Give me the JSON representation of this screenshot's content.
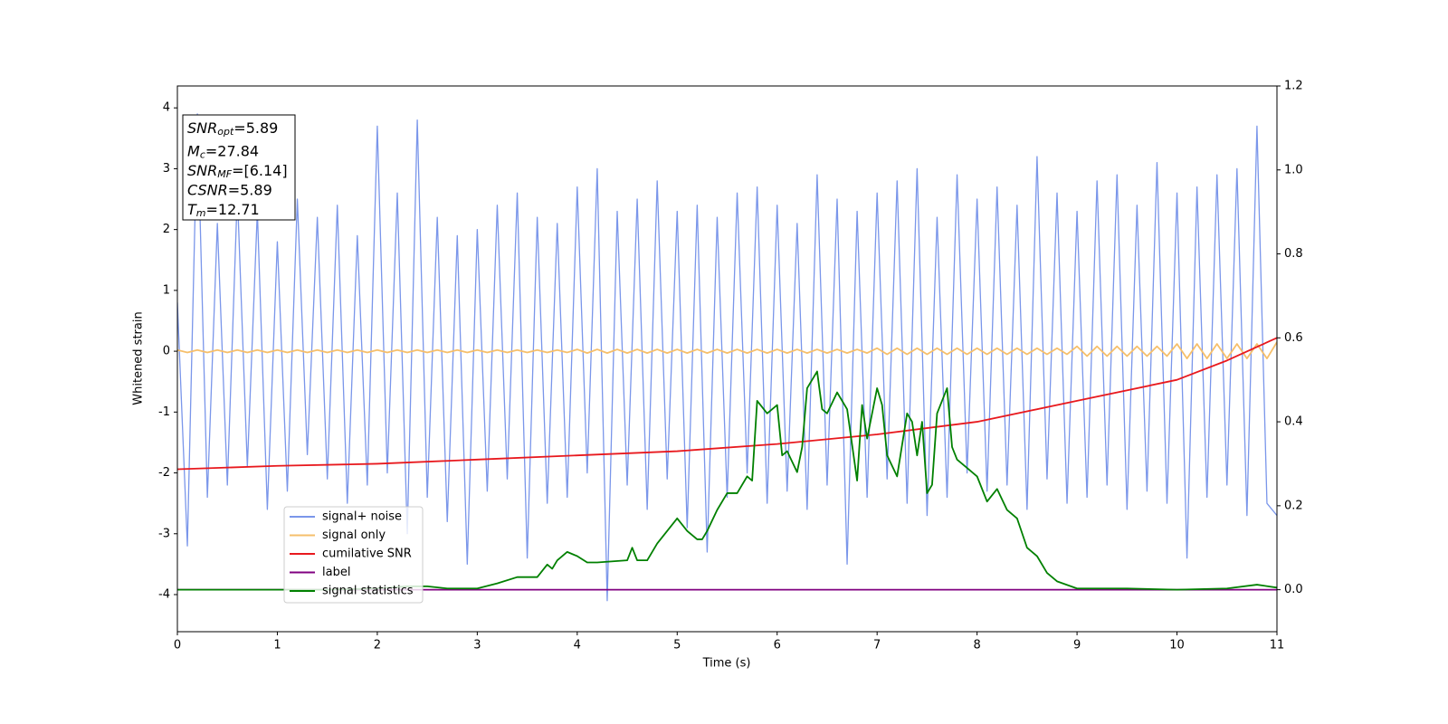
{
  "chart_data": {
    "type": "line",
    "xlabel": "Time (s)",
    "ylabel": "Whitened strain",
    "xlim": [
      0,
      11
    ],
    "xticks": [
      0,
      1,
      2,
      3,
      4,
      5,
      6,
      7,
      8,
      9,
      10,
      11
    ],
    "ylim": [
      -4.61,
      4.36
    ],
    "yticks": [
      -4,
      -3,
      -2,
      -1,
      0,
      1,
      2,
      3,
      4
    ],
    "y2lim": [
      -0.1,
      1.2
    ],
    "y2ticks": [
      {
        "value": 0,
        "label": "0.0"
      },
      0.2,
      0.4,
      0.6,
      0.8,
      {
        "value": 1,
        "label": "1.0"
      },
      1.2
    ],
    "legend": "lower left",
    "annotations": [
      {
        "symbol": "SNR",
        "subscript": "opt",
        "text": "=5.89"
      },
      {
        "symbol": "M",
        "subscript": "c",
        "text": "=27.84"
      },
      {
        "symbol": "SNR",
        "subscript": "MF",
        "text": "=[6.14]"
      },
      {
        "symbol": "CSNR",
        "text": "=5.89"
      },
      {
        "symbol": "T",
        "subscript": "m",
        "text": "=12.71"
      }
    ],
    "series": [
      {
        "name": "signal+ noise",
        "color": "#7a96ea",
        "axis": "y",
        "x": [
          0,
          0.1,
          0.2,
          0.3,
          0.4,
          0.5,
          0.6,
          0.7,
          0.8,
          0.9,
          1,
          1.1,
          1.2,
          1.3,
          1.4,
          1.5,
          1.6,
          1.7,
          1.8,
          1.9,
          2,
          2.1,
          2.2,
          2.3,
          2.4,
          2.5,
          2.6,
          2.7,
          2.8,
          2.9,
          3,
          3.1,
          3.2,
          3.3,
          3.4,
          3.5,
          3.6,
          3.7,
          3.8,
          3.9,
          4,
          4.1,
          4.2,
          4.3,
          4.4,
          4.5,
          4.6,
          4.7,
          4.8,
          4.9,
          5,
          5.1,
          5.2,
          5.3,
          5.4,
          5.5,
          5.6,
          5.7,
          5.8,
          5.9,
          6,
          6.1,
          6.2,
          6.3,
          6.4,
          6.5,
          6.6,
          6.7,
          6.8,
          6.9,
          7,
          7.1,
          7.2,
          7.3,
          7.4,
          7.5,
          7.6,
          7.7,
          7.8,
          7.9,
          8,
          8.1,
          8.2,
          8.3,
          8.4,
          8.5,
          8.6,
          8.7,
          8.8,
          8.9,
          9,
          9.1,
          9.2,
          9.3,
          9.4,
          9.5,
          9.6,
          9.7,
          9.8,
          9.9,
          10,
          10.1,
          10.2,
          10.3,
          10.4,
          10.5,
          10.6,
          10.7,
          10.8,
          10.9,
          11
        ],
        "values": [
          0.8,
          -3.2,
          3.9,
          -2.4,
          2.1,
          -2.2,
          2.6,
          -1.9,
          2.3,
          -2.6,
          1.8,
          -2.3,
          2.5,
          -1.7,
          2.2,
          -2.1,
          2.4,
          -2.5,
          1.9,
          -2.2,
          3.7,
          -2.0,
          2.6,
          -3.0,
          3.8,
          -2.4,
          2.2,
          -2.8,
          1.9,
          -3.5,
          2.0,
          -2.3,
          2.4,
          -2.1,
          2.6,
          -3.4,
          2.2,
          -2.5,
          2.1,
          -2.4,
          2.7,
          -2.0,
          3.0,
          -4.1,
          2.3,
          -2.2,
          2.5,
          -2.6,
          2.8,
          -2.1,
          2.3,
          -2.9,
          2.4,
          -3.3,
          2.2,
          -2.4,
          2.6,
          -2.0,
          2.7,
          -2.5,
          2.4,
          -2.3,
          2.1,
          -2.6,
          2.9,
          -2.2,
          2.5,
          -3.5,
          2.3,
          -2.4,
          2.6,
          -2.1,
          2.8,
          -2.5,
          3.0,
          -2.7,
          2.2,
          -2.4,
          2.9,
          -2.0,
          2.5,
          -2.3,
          2.7,
          -2.2,
          2.4,
          -2.6,
          3.2,
          -2.1,
          2.6,
          -2.5,
          2.3,
          -2.4,
          2.8,
          -2.2,
          2.9,
          -2.6,
          2.4,
          -2.3,
          3.1,
          -2.5,
          2.6,
          -3.4,
          2.7,
          -2.4,
          2.9,
          -2.2,
          3.0,
          -2.7,
          3.7,
          -2.5,
          -2.7
        ]
      },
      {
        "name": "signal only",
        "color": "#f6bf6b",
        "axis": "y",
        "x": [
          0,
          0.1,
          0.2,
          0.3,
          0.4,
          0.5,
          0.6,
          0.7,
          0.8,
          0.9,
          1,
          1.1,
          1.2,
          1.3,
          1.4,
          1.5,
          1.6,
          1.7,
          1.8,
          1.9,
          2,
          2.1,
          2.2,
          2.3,
          2.4,
          2.5,
          2.6,
          2.7,
          2.8,
          2.9,
          3,
          3.1,
          3.2,
          3.3,
          3.4,
          3.5,
          3.6,
          3.7,
          3.8,
          3.9,
          4,
          4.1,
          4.2,
          4.3,
          4.4,
          4.5,
          4.6,
          4.7,
          4.8,
          4.9,
          5,
          5.1,
          5.2,
          5.3,
          5.4,
          5.5,
          5.6,
          5.7,
          5.8,
          5.9,
          6,
          6.1,
          6.2,
          6.3,
          6.4,
          6.5,
          6.6,
          6.7,
          6.8,
          6.9,
          7,
          7.1,
          7.2,
          7.3,
          7.4,
          7.5,
          7.6,
          7.7,
          7.8,
          7.9,
          8,
          8.1,
          8.2,
          8.3,
          8.4,
          8.5,
          8.6,
          8.7,
          8.8,
          8.9,
          9,
          9.1,
          9.2,
          9.3,
          9.4,
          9.5,
          9.6,
          9.7,
          9.8,
          9.9,
          10,
          10.1,
          10.2,
          10.3,
          10.4,
          10.5,
          10.6,
          10.7,
          10.8,
          10.9,
          11
        ],
        "values": [
          0.02,
          -0.02,
          0.02,
          -0.02,
          0.02,
          -0.02,
          0.02,
          -0.02,
          0.02,
          -0.02,
          0.02,
          -0.02,
          0.02,
          -0.02,
          0.02,
          -0.02,
          0.02,
          -0.02,
          0.02,
          -0.02,
          0.02,
          -0.02,
          0.02,
          -0.02,
          0.02,
          -0.02,
          0.02,
          -0.02,
          0.02,
          -0.02,
          0.02,
          -0.02,
          0.02,
          -0.02,
          0.02,
          -0.02,
          0.02,
          -0.02,
          0.02,
          -0.02,
          0.03,
          -0.03,
          0.03,
          -0.03,
          0.03,
          -0.03,
          0.03,
          -0.03,
          0.03,
          -0.03,
          0.03,
          -0.03,
          0.03,
          -0.03,
          0.03,
          -0.03,
          0.03,
          -0.03,
          0.03,
          -0.03,
          0.03,
          -0.03,
          0.03,
          -0.03,
          0.03,
          -0.03,
          0.03,
          -0.03,
          0.03,
          -0.03,
          0.05,
          -0.05,
          0.05,
          -0.05,
          0.05,
          -0.05,
          0.05,
          -0.05,
          0.05,
          -0.05,
          0.05,
          -0.05,
          0.05,
          -0.05,
          0.05,
          -0.05,
          0.05,
          -0.05,
          0.05,
          -0.05,
          0.08,
          -0.08,
          0.08,
          -0.08,
          0.08,
          -0.08,
          0.08,
          -0.08,
          0.08,
          -0.08,
          0.12,
          -0.12,
          0.12,
          -0.12,
          0.12,
          -0.12,
          0.12,
          -0.12,
          0.12,
          -0.12,
          0.15
        ]
      },
      {
        "name": "cumilative SNR",
        "color": "#e8191e",
        "axis": "y2",
        "x": [
          0,
          1,
          2,
          3,
          4,
          5,
          6,
          7,
          8,
          9,
          10,
          10.5,
          11
        ],
        "values": [
          0.287,
          0.295,
          0.3,
          0.31,
          0.32,
          0.33,
          0.347,
          0.37,
          0.4,
          0.45,
          0.5,
          0.546,
          0.6
        ]
      },
      {
        "name": "label",
        "color": "#800080",
        "axis": "y2",
        "x": [
          0,
          11
        ],
        "values": [
          0,
          0
        ]
      },
      {
        "name": "signal statistics",
        "color": "#008000",
        "axis": "y2",
        "x": [
          0,
          0.5,
          1,
          1.5,
          2,
          2.3,
          2.5,
          2.7,
          3,
          3.2,
          3.4,
          3.6,
          3.7,
          3.75,
          3.8,
          3.9,
          4,
          4.1,
          4.2,
          4.5,
          4.55,
          4.6,
          4.7,
          4.8,
          4.9,
          5,
          5.1,
          5.2,
          5.25,
          5.3,
          5.4,
          5.5,
          5.6,
          5.7,
          5.75,
          5.8,
          5.9,
          6.0,
          6.05,
          6.1,
          6.2,
          6.25,
          6.3,
          6.4,
          6.45,
          6.5,
          6.6,
          6.7,
          6.8,
          6.85,
          6.9,
          7.0,
          7.05,
          7.1,
          7.2,
          7.3,
          7.35,
          7.4,
          7.45,
          7.5,
          7.55,
          7.6,
          7.7,
          7.75,
          7.8,
          7.9,
          8.0,
          8.1,
          8.2,
          8.3,
          8.4,
          8.5,
          8.6,
          8.7,
          8.8,
          9,
          9.5,
          10,
          10.5,
          10.8,
          11
        ],
        "values": [
          0.0,
          0.0,
          0.0,
          0.0,
          0.003,
          0.008,
          0.008,
          0.003,
          0.003,
          0.015,
          0.03,
          0.03,
          0.06,
          0.05,
          0.07,
          0.09,
          0.08,
          0.065,
          0.065,
          0.07,
          0.1,
          0.07,
          0.07,
          0.11,
          0.14,
          0.17,
          0.14,
          0.12,
          0.12,
          0.14,
          0.19,
          0.23,
          0.23,
          0.27,
          0.26,
          0.45,
          0.42,
          0.44,
          0.32,
          0.33,
          0.28,
          0.34,
          0.48,
          0.52,
          0.43,
          0.42,
          0.47,
          0.43,
          0.26,
          0.44,
          0.36,
          0.48,
          0.44,
          0.32,
          0.27,
          0.42,
          0.4,
          0.32,
          0.4,
          0.23,
          0.25,
          0.42,
          0.48,
          0.34,
          0.31,
          0.29,
          0.27,
          0.21,
          0.24,
          0.19,
          0.17,
          0.1,
          0.08,
          0.04,
          0.02,
          0.003,
          0.003,
          0.0,
          0.003,
          0.012,
          0.005
        ]
      }
    ]
  }
}
